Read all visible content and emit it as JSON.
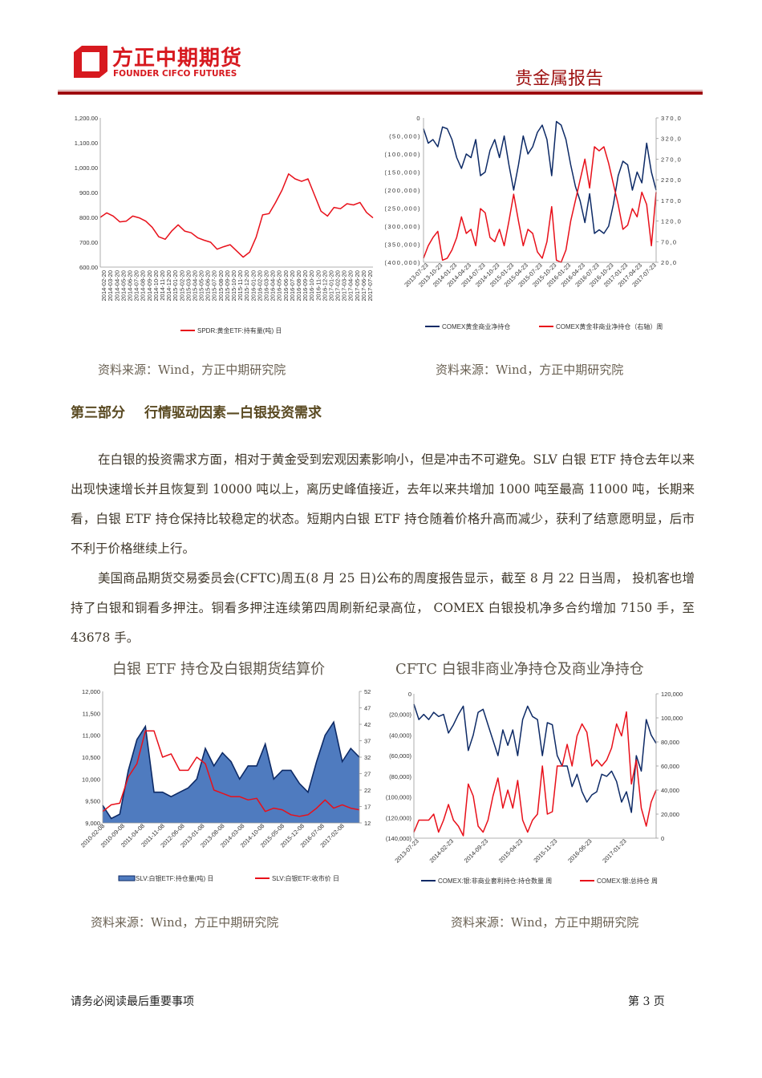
{
  "header": {
    "logo_cn": "方正中期期货",
    "logo_en": "FOUNDER CIFCO FUTURES",
    "report_type": "贵金属报告",
    "brand_color": "#d7191f",
    "rule_color": "#9e0b0f"
  },
  "sources": {
    "top_left": "资料来源：Wind，方正中期研究院",
    "top_right": "资料来源：Wind，方正中期研究院",
    "bottom_left": "资料来源：Wind，方正中期研究院",
    "bottom_right": "资料来源：Wind，方正中期研究院"
  },
  "section": {
    "part": "第三部分",
    "title": "行情驱动因素—白银投资需求"
  },
  "paragraphs": [
    "在白银的投资需求方面，相对于黄金受到宏观因素影响小，但是冲击不可避免。SLV 白银 ETF 持仓去年以来出现快速增长并且恢复到 10000 吨以上，离历史峰值接近，去年以来共增加 1000 吨至最高 11000 吨，长期来看，白银 ETF 持仓保持比较稳定的状态。短期内白银 ETF 持仓随着价格升高而减少，获利了结意愿明显，后市不利于价格继续上行。",
    "美国商品期货交易委员会(CFTC)周五(8 月 25 日)公布的周度报告显示，截至 8 月 22 日当周， 投机客也增持了白银和铜看多押注。铜看多押注连续第四周刷新纪录高位， COMEX 白银投机净多合约增加 7150 手，至 43678 手。"
  ],
  "chart_titles": {
    "silver_etf": "白银 ETF 持仓及白银期货结算价",
    "cftc_silver": "CFTC 白银非商业净持仓及商业净持仓"
  },
  "footer": {
    "notice": "请务必阅读最后重要事项",
    "page": "第 3 页"
  },
  "chart_data": [
    {
      "type": "line",
      "xlim": [
        "2014-02",
        "2017-08"
      ],
      "ylim": [
        600,
        1200
      ],
      "y_ticks": [
        "600.00",
        "700.00",
        "800.00",
        "900.00",
        "1,000.00",
        "1,100.00",
        "1,200.00"
      ],
      "y_tick_values": [
        600,
        700,
        800,
        900,
        1000,
        1100,
        1200
      ],
      "x_ticks": [
        "2014-02-20",
        "2014-03-20",
        "2014-04-20",
        "2014-05-20",
        "2014-06-20",
        "2014-07-20",
        "2014-08-20",
        "2014-09-20",
        "2014-10-20",
        "2014-11-20",
        "2014-12-20",
        "2015-01-20",
        "2015-02-20",
        "2015-03-20",
        "2015-04-20",
        "2015-05-20",
        "2015-06-20",
        "2015-07-20",
        "2015-08-20",
        "2015-09-20",
        "2015-10-20",
        "2015-11-20",
        "2015-12-20",
        "2016-01-20",
        "2016-02-20",
        "2016-03-20",
        "2016-04-20",
        "2016-05-20",
        "2016-06-20",
        "2016-07-20",
        "2016-08-20",
        "2016-09-20",
        "2016-10-20",
        "2016-11-20",
        "2016-12-20",
        "2017-01-20",
        "2017-02-20",
        "2017-03-20",
        "2017-04-20",
        "2017-05-20",
        "2017-06-20",
        "2017-07-20"
      ],
      "grid": false,
      "legend": "bottom",
      "series": [
        {
          "name": "SPDR:黄金ETF:持有量(吨) 日",
          "color": "#e8101a",
          "axis": "left",
          "x": [
            "2014-02",
            "2014-03",
            "2014-04",
            "2014-05",
            "2014-06",
            "2014-07",
            "2014-08",
            "2014-09",
            "2014-10",
            "2014-11",
            "2014-12",
            "2015-01",
            "2015-02",
            "2015-03",
            "2015-04",
            "2015-05",
            "2015-06",
            "2015-07",
            "2015-08",
            "2015-09",
            "2015-10",
            "2015-11",
            "2015-12",
            "2016-01",
            "2016-02",
            "2016-03",
            "2016-04",
            "2016-05",
            "2016-06",
            "2016-07",
            "2016-08",
            "2016-09",
            "2016-10",
            "2016-11",
            "2016-12",
            "2017-01",
            "2017-02",
            "2017-03",
            "2017-04",
            "2017-05",
            "2017-06",
            "2017-07",
            "2017-08"
          ],
          "y": [
            800,
            818,
            805,
            782,
            785,
            805,
            798,
            785,
            760,
            722,
            712,
            745,
            770,
            745,
            738,
            718,
            708,
            700,
            672,
            682,
            690,
            665,
            640,
            660,
            720,
            810,
            815,
            860,
            910,
            975,
            955,
            945,
            955,
            890,
            825,
            805,
            840,
            835,
            855,
            850,
            860,
            820,
            798
          ]
        }
      ]
    },
    {
      "type": "line",
      "xlim": [
        "2013-07",
        "2017-08"
      ],
      "ylim": [
        -400000,
        0
      ],
      "y2lim": [
        20,
        370
      ],
      "y_ticks": [
        "(400,000)",
        "(350,000)",
        "(300,000)",
        "(250,000)",
        "(200,000)",
        "(150,000)",
        "(100,000)",
        "(50,000)",
        "0"
      ],
      "y_tick_values": [
        -400000,
        -350000,
        -300000,
        -250000,
        -200000,
        -150000,
        -100000,
        -50000,
        0
      ],
      "y2_ticks": [
        "20,0",
        "70,0",
        "120,0",
        "170,0",
        "220,0",
        "270,0",
        "320,0",
        "370,0"
      ],
      "y2_tick_values": [
        20,
        70,
        120,
        170,
        220,
        270,
        320,
        370
      ],
      "x_ticks": [
        "2013-07-23",
        "2013-10-23",
        "2014-01-23",
        "2014-04-23",
        "2014-07-23",
        "2014-10-23",
        "2015-01-23",
        "2015-04-23",
        "2015-07-23",
        "2015-10-23",
        "2016-01-23",
        "2016-04-23",
        "2016-07-23",
        "2016-10-23",
        "2017-01-23",
        "2017-04-23",
        "2017-07-23"
      ],
      "grid": false,
      "legend": "bottom",
      "series": [
        {
          "name": "COMEX黄金商业净持仓",
          "color": "#0d2a66",
          "axis": "left",
          "x": [
            "2013-07",
            "2013-08",
            "2013-09",
            "2013-10",
            "2013-11",
            "2013-12",
            "2014-01",
            "2014-02",
            "2014-03",
            "2014-04",
            "2014-05",
            "2014-06",
            "2014-07",
            "2014-08",
            "2014-09",
            "2014-10",
            "2014-11",
            "2014-12",
            "2015-01",
            "2015-02",
            "2015-03",
            "2015-04",
            "2015-05",
            "2015-06",
            "2015-07",
            "2015-08",
            "2015-09",
            "2015-10",
            "2015-11",
            "2015-12",
            "2016-01",
            "2016-02",
            "2016-03",
            "2016-04",
            "2016-05",
            "2016-06",
            "2016-07",
            "2016-08",
            "2016-09",
            "2016-10",
            "2016-11",
            "2016-12",
            "2017-01",
            "2017-02",
            "2017-03",
            "2017-04",
            "2017-05",
            "2017-06",
            "2017-07",
            "2017-08"
          ],
          "y": [
            -30000,
            -70000,
            -60000,
            -80000,
            -25000,
            -30000,
            -60000,
            -110000,
            -140000,
            -100000,
            -110000,
            -60000,
            -160000,
            -150000,
            -90000,
            -60000,
            -110000,
            -50000,
            -130000,
            -200000,
            -130000,
            -50000,
            -100000,
            -80000,
            -40000,
            -20000,
            -60000,
            -160000,
            -10000,
            -20000,
            -60000,
            -130000,
            -190000,
            -230000,
            -290000,
            -210000,
            -320000,
            -310000,
            -320000,
            -300000,
            -240000,
            -160000,
            -120000,
            -130000,
            -200000,
            -150000,
            -180000,
            -70000,
            -150000,
            -200000
          ]
        },
        {
          "name": "COMEX黄金非商业净持仓（右轴）周",
          "color": "#e8101a",
          "axis": "right",
          "x": [
            "2013-07",
            "2013-08",
            "2013-09",
            "2013-10",
            "2013-11",
            "2013-12",
            "2014-01",
            "2014-02",
            "2014-03",
            "2014-04",
            "2014-05",
            "2014-06",
            "2014-07",
            "2014-08",
            "2014-09",
            "2014-10",
            "2014-11",
            "2014-12",
            "2015-01",
            "2015-02",
            "2015-03",
            "2015-04",
            "2015-05",
            "2015-06",
            "2015-07",
            "2015-08",
            "2015-09",
            "2015-10",
            "2015-11",
            "2015-12",
            "2016-01",
            "2016-02",
            "2016-03",
            "2016-04",
            "2016-05",
            "2016-06",
            "2016-07",
            "2016-08",
            "2016-09",
            "2016-10",
            "2016-11",
            "2016-12",
            "2017-01",
            "2017-02",
            "2017-03",
            "2017-04",
            "2017-05",
            "2017-06",
            "2017-07",
            "2017-08"
          ],
          "y": [
            30,
            60,
            80,
            95,
            25,
            30,
            50,
            80,
            130,
            90,
            100,
            60,
            150,
            140,
            80,
            70,
            100,
            60,
            120,
            185,
            120,
            60,
            100,
            90,
            45,
            30,
            70,
            155,
            25,
            20,
            50,
            120,
            170,
            220,
            270,
            200,
            300,
            290,
            300,
            260,
            210,
            160,
            100,
            110,
            150,
            130,
            190,
            160,
            60,
            190
          ]
        }
      ]
    },
    {
      "type": "area",
      "xlim": [
        "2010-02",
        "2017-08"
      ],
      "ylim": [
        9000,
        12000
      ],
      "y2lim": [
        12,
        52
      ],
      "y_ticks": [
        "9,000",
        "9,500",
        "10,000",
        "10,500",
        "11,000",
        "11,500",
        "12,000"
      ],
      "y_tick_values": [
        9000,
        9500,
        10000,
        10500,
        11000,
        11500,
        12000
      ],
      "y2_ticks": [
        "12",
        "17",
        "22",
        "27",
        "32",
        "37",
        "42",
        "47",
        "52"
      ],
      "y2_tick_values": [
        12,
        17,
        22,
        27,
        32,
        37,
        42,
        47,
        52
      ],
      "x_ticks": [
        "2010-02-08",
        "2010-09-08",
        "2011-04-08",
        "2011-11-08",
        "2012-06-08",
        "2013-01-08",
        "2013-08-08",
        "2014-03-08",
        "2014-10-08",
        "2015-05-08",
        "2015-12-08",
        "2016-07-08",
        "2017-02-08"
      ],
      "grid": false,
      "legend": "bottom",
      "series": [
        {
          "name": "SLV:白银ETF:持仓量(吨) 日",
          "color": "#4f7bbf",
          "edge_color": "#0d2a66",
          "axis": "left",
          "style": "area",
          "x": [
            "2010-02",
            "2010-05",
            "2010-08",
            "2010-11",
            "2011-02",
            "2011-05",
            "2011-08",
            "2011-11",
            "2012-02",
            "2012-05",
            "2012-08",
            "2012-11",
            "2013-02",
            "2013-05",
            "2013-08",
            "2013-11",
            "2014-02",
            "2014-05",
            "2014-08",
            "2014-11",
            "2015-02",
            "2015-05",
            "2015-08",
            "2015-11",
            "2016-02",
            "2016-05",
            "2016-08",
            "2016-11",
            "2017-02",
            "2017-05",
            "2017-08"
          ],
          "y": [
            9400,
            9100,
            9200,
            10200,
            10900,
            11200,
            9700,
            9700,
            9600,
            9700,
            9800,
            10000,
            10700,
            10300,
            10600,
            10400,
            10000,
            10300,
            10300,
            10800,
            10000,
            10200,
            10200,
            9900,
            9700,
            10400,
            11000,
            11300,
            10400,
            10700,
            10500
          ]
        },
        {
          "name": "SLV:白银ETF:收市价 日",
          "color": "#e8101a",
          "axis": "right",
          "style": "line",
          "x": [
            "2010-02",
            "2010-05",
            "2010-08",
            "2010-11",
            "2011-02",
            "2011-05",
            "2011-08",
            "2011-11",
            "2012-02",
            "2012-05",
            "2012-08",
            "2012-11",
            "2013-02",
            "2013-05",
            "2013-08",
            "2013-11",
            "2014-02",
            "2014-05",
            "2014-08",
            "2014-11",
            "2015-02",
            "2015-05",
            "2015-08",
            "2015-11",
            "2016-02",
            "2016-05",
            "2016-08",
            "2016-11",
            "2017-02",
            "2017-05",
            "2017-08"
          ],
          "y": [
            15.5,
            17.5,
            18,
            26,
            30,
            40,
            40,
            32,
            33,
            28,
            28,
            32,
            30,
            22,
            21,
            20,
            20,
            19,
            19.5,
            15.5,
            16.5,
            16,
            14.5,
            14,
            14.5,
            16.5,
            19,
            16.5,
            17.5,
            16.5,
            16
          ]
        }
      ]
    },
    {
      "type": "line",
      "xlim": [
        "2013-07",
        "2017-08"
      ],
      "ylim": [
        -140000,
        0
      ],
      "y2lim": [
        0,
        120000
      ],
      "y_ticks": [
        "(140,000)",
        "(120,000)",
        "(100,000)",
        "(80,000)",
        "(60,000)",
        "(40,000)",
        "(20,000)",
        "0"
      ],
      "y_tick_values": [
        -140000,
        -120000,
        -100000,
        -80000,
        -60000,
        -40000,
        -20000,
        0
      ],
      "y2_ticks": [
        "0",
        "20,000",
        "40,000",
        "60,000",
        "80,000",
        "100,000",
        "120,000"
      ],
      "y2_tick_values": [
        0,
        20000,
        40000,
        60000,
        80000,
        100000,
        120000
      ],
      "x_ticks": [
        "2013-07-23",
        "2014-02-23",
        "2014-09-23",
        "2015-04-23",
        "2015-11-23",
        "2016-06-23",
        "2017-01-23"
      ],
      "grid": false,
      "legend": "bottom",
      "series": [
        {
          "name": "COMEX:银:非商业套利持仓:持仓数量 周",
          "color": "#0d2a66",
          "axis": "left",
          "x": [
            "2013-07",
            "2013-08",
            "2013-09",
            "2013-10",
            "2013-11",
            "2013-12",
            "2014-01",
            "2014-02",
            "2014-03",
            "2014-04",
            "2014-05",
            "2014-06",
            "2014-07",
            "2014-08",
            "2014-09",
            "2014-10",
            "2014-11",
            "2014-12",
            "2015-01",
            "2015-02",
            "2015-03",
            "2015-04",
            "2015-05",
            "2015-06",
            "2015-07",
            "2015-08",
            "2015-09",
            "2015-10",
            "2015-11",
            "2015-12",
            "2016-01",
            "2016-02",
            "2016-03",
            "2016-04",
            "2016-05",
            "2016-06",
            "2016-07",
            "2016-08",
            "2016-09",
            "2016-10",
            "2016-11",
            "2016-12",
            "2017-01",
            "2017-02",
            "2017-03",
            "2017-04",
            "2017-05",
            "2017-06",
            "2017-07",
            "2017-08"
          ],
          "y": [
            -10000,
            -25000,
            -20000,
            -25000,
            -18000,
            -22000,
            -20000,
            -38000,
            -30000,
            -20000,
            -12000,
            -55000,
            -40000,
            -18000,
            -15000,
            -30000,
            -45000,
            -60000,
            -35000,
            -50000,
            -35000,
            -60000,
            -25000,
            -12000,
            -22000,
            -25000,
            -60000,
            -28000,
            -30000,
            -60000,
            -70000,
            -70000,
            -90000,
            -78000,
            -95000,
            -105000,
            -98000,
            -95000,
            -78000,
            -80000,
            -75000,
            -85000,
            -105000,
            -95000,
            -115000,
            -60000,
            -75000,
            -25000,
            -40000,
            -48000
          ]
        },
        {
          "name": "COMEX:银:总持仓 周",
          "color": "#e8101a",
          "axis": "right",
          "x": [
            "2013-07",
            "2013-08",
            "2013-09",
            "2013-10",
            "2013-11",
            "2013-12",
            "2014-01",
            "2014-02",
            "2014-03",
            "2014-04",
            "2014-05",
            "2014-06",
            "2014-07",
            "2014-08",
            "2014-09",
            "2014-10",
            "2014-11",
            "2014-12",
            "2015-01",
            "2015-02",
            "2015-03",
            "2015-04",
            "2015-05",
            "2015-06",
            "2015-07",
            "2015-08",
            "2015-09",
            "2015-10",
            "2015-11",
            "2015-12",
            "2016-01",
            "2016-02",
            "2016-03",
            "2016-04",
            "2016-05",
            "2016-06",
            "2016-07",
            "2016-08",
            "2016-09",
            "2016-10",
            "2016-11",
            "2016-12",
            "2017-01",
            "2017-02",
            "2017-03",
            "2017-04",
            "2017-05",
            "2017-06",
            "2017-07",
            "2017-08"
          ],
          "y": [
            5000,
            15000,
            15000,
            15000,
            20000,
            5000,
            15000,
            28000,
            15000,
            10000,
            2000,
            45000,
            35000,
            10000,
            5000,
            15000,
            35000,
            50000,
            25000,
            40000,
            25000,
            48000,
            15000,
            5000,
            15000,
            20000,
            60000,
            20000,
            22000,
            60000,
            60000,
            78000,
            60000,
            85000,
            95000,
            88000,
            60000,
            65000,
            60000,
            65000,
            75000,
            95000,
            85000,
            105000,
            45000,
            65000,
            25000,
            10000,
            30000,
            40000
          ]
        }
      ]
    }
  ]
}
